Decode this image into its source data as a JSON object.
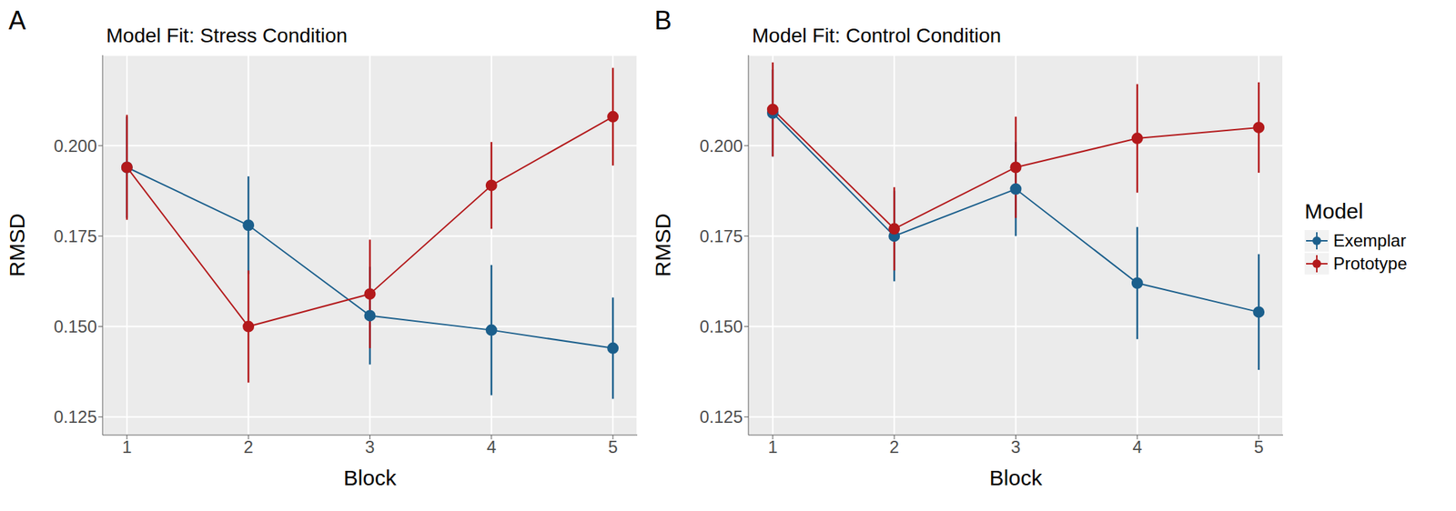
{
  "chart_data": [
    {
      "type": "line",
      "panel_label": "A",
      "title": "Model Fit: Stress Condition",
      "x_label": "Block",
      "y_label": "RMSD",
      "x": [
        1,
        2,
        3,
        4,
        5
      ],
      "xlim": [
        0.8,
        5.2
      ],
      "xticks": [
        1,
        2,
        3,
        4,
        5
      ],
      "ylim": [
        0.12,
        0.225
      ],
      "yticks": [
        0.125,
        {
          "value": 0.15,
          "label": "0.150"
        },
        0.175,
        {
          "value": 0.2,
          "label": "0.200"
        }
      ],
      "grid": true,
      "marker": "circle",
      "series": [
        {
          "name": "Exemplar",
          "color": "#1b5f8c",
          "values": [
            0.194,
            0.178,
            0.153,
            0.149,
            0.144
          ],
          "errors": [
            0.014,
            0.0135,
            0.0135,
            0.018,
            0.014
          ]
        },
        {
          "name": "Prototype",
          "color": "#b3191b",
          "values": [
            0.194,
            0.15,
            0.159,
            0.189,
            0.208
          ],
          "errors": [
            0.0145,
            0.0155,
            0.015,
            0.012,
            0.0135
          ]
        }
      ]
    },
    {
      "type": "line",
      "panel_label": "B",
      "title": "Model Fit: Control Condition",
      "x_label": "Block",
      "y_label": "RMSD",
      "x": [
        1,
        2,
        3,
        4,
        5
      ],
      "xlim": [
        0.8,
        5.2
      ],
      "xticks": [
        1,
        2,
        3,
        4,
        5
      ],
      "ylim": [
        0.12,
        0.225
      ],
      "yticks": [
        0.125,
        {
          "value": 0.15,
          "label": "0.150"
        },
        0.175,
        {
          "value": 0.2,
          "label": "0.200"
        }
      ],
      "grid": true,
      "marker": "circle",
      "legend": "right",
      "legend_title": "Model",
      "series": [
        {
          "name": "Exemplar",
          "color": "#1b5f8c",
          "values": [
            0.209,
            0.175,
            0.188,
            0.162,
            0.154
          ],
          "errors": [
            0.012,
            0.0125,
            0.013,
            0.0155,
            0.016
          ]
        },
        {
          "name": "Prototype",
          "color": "#b3191b",
          "values": [
            0.21,
            0.177,
            0.194,
            0.202,
            0.205
          ],
          "errors": [
            0.013,
            0.0115,
            0.014,
            0.015,
            0.0125
          ]
        }
      ]
    }
  ]
}
